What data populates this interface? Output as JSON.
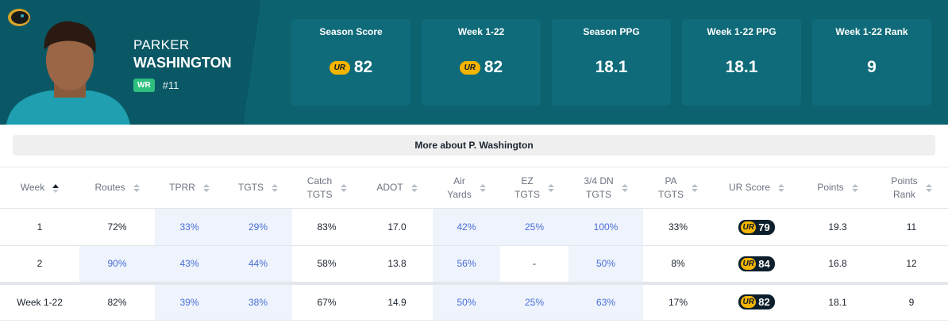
{
  "header": {
    "first_name": "PARKER",
    "last_name": "WASHINGTON",
    "position": "WR",
    "number": "#11"
  },
  "stats": [
    {
      "label": "Season Score",
      "value": "82",
      "ur_badge": true
    },
    {
      "label": "Week 1-22",
      "value": "82",
      "ur_badge": true
    },
    {
      "label": "Season PPG",
      "value": "18.1"
    },
    {
      "label": "Week 1-22 PPG",
      "value": "18.1"
    },
    {
      "label": "Week 1-22 Rank",
      "value": "9"
    }
  ],
  "more_button": "More about P. Washington",
  "table": {
    "columns": [
      [
        "Week"
      ],
      [
        "Routes"
      ],
      [
        "TPRR"
      ],
      [
        "TGTS"
      ],
      [
        "Catch",
        "TGTS"
      ],
      [
        "ADOT"
      ],
      [
        "Air",
        "Yards"
      ],
      [
        "EZ",
        "TGTS"
      ],
      [
        "3/4 DN",
        "TGTS"
      ],
      [
        "PA",
        "TGTS"
      ],
      [
        "UR Score"
      ],
      [
        "Points"
      ],
      [
        "Points",
        "Rank"
      ]
    ],
    "rows": [
      [
        {
          "text": "1"
        },
        {
          "text": "72%"
        },
        {
          "text": "33%",
          "highlight": true
        },
        {
          "text": "29%",
          "highlight": true
        },
        {
          "text": "83%"
        },
        {
          "text": "17.0"
        },
        {
          "text": "42%",
          "highlight": true
        },
        {
          "text": "25%",
          "highlight": true
        },
        {
          "text": "100%",
          "highlight": true
        },
        {
          "text": "33%"
        },
        {
          "text": "79",
          "ur_badge": true
        },
        {
          "text": "19.3"
        },
        {
          "text": "11"
        }
      ],
      [
        {
          "text": "2"
        },
        {
          "text": "90%",
          "highlight": true
        },
        {
          "text": "43%",
          "highlight": true
        },
        {
          "text": "44%",
          "highlight": true
        },
        {
          "text": "58%"
        },
        {
          "text": "13.8"
        },
        {
          "text": "56%",
          "highlight": true
        },
        {
          "text": "-"
        },
        {
          "text": "50%",
          "highlight": true
        },
        {
          "text": "8%"
        },
        {
          "text": "84",
          "ur_badge": true
        },
        {
          "text": "16.8"
        },
        {
          "text": "12"
        }
      ]
    ],
    "total_row": [
      {
        "text": "Week 1-22"
      },
      {
        "text": "82%"
      },
      {
        "text": "39%",
        "highlight": true
      },
      {
        "text": "38%",
        "highlight": true
      },
      {
        "text": "67%"
      },
      {
        "text": "14.9"
      },
      {
        "text": "50%",
        "highlight": true
      },
      {
        "text": "25%",
        "highlight": true
      },
      {
        "text": "63%",
        "highlight": true
      },
      {
        "text": "17%"
      },
      {
        "text": "82",
        "ur_badge": true
      },
      {
        "text": "18.1"
      },
      {
        "text": "9"
      }
    ]
  }
}
